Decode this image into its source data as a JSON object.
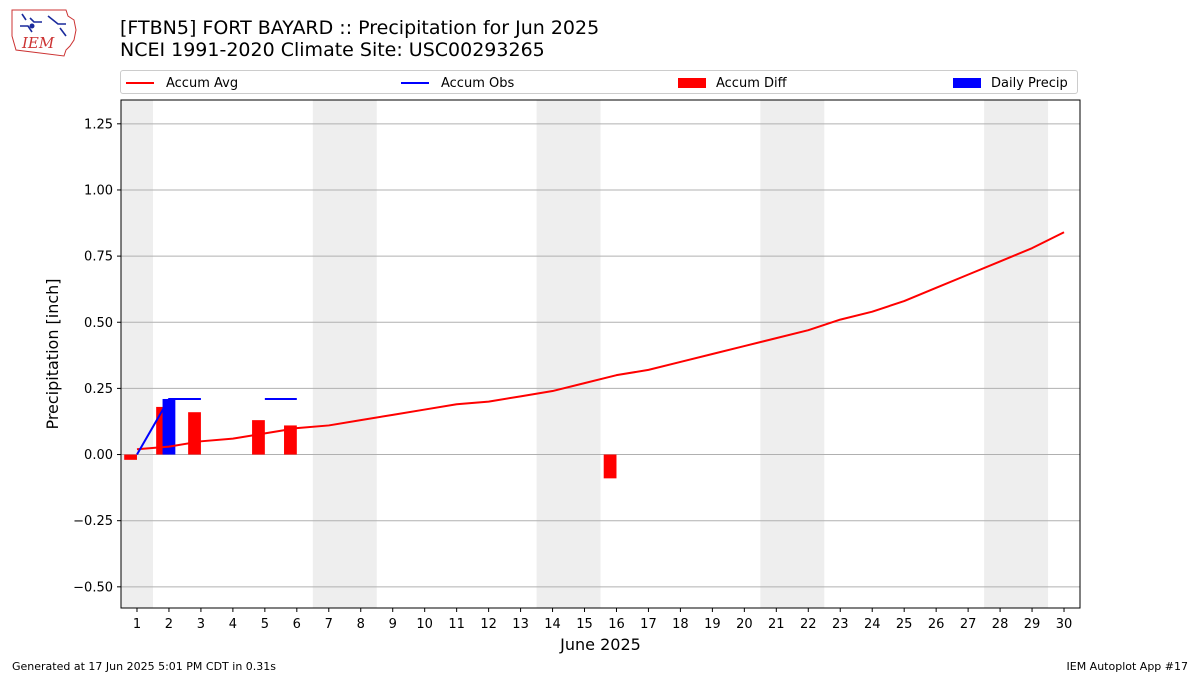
{
  "logo": {
    "text": "IEM"
  },
  "header": {
    "title_line1": "[FTBN5] FORT BAYARD :: Precipitation for Jun 2025",
    "title_line2": "NCEI 1991-2020 Climate Site: USC00293265"
  },
  "footer": {
    "left": "Generated at 17 Jun 2025 5:01 PM CDT in 0.31s",
    "right": "IEM Autoplot App #17"
  },
  "colors": {
    "accum_avg": "#ff0000",
    "accum_obs": "#0000ff",
    "accum_diff": "#ff0000",
    "daily_precip": "#0000ff",
    "weekend_band": "#eeeeee",
    "grid": "#b0b0b0"
  },
  "chart_data": {
    "type": "line",
    "xlabel": "June 2025",
    "ylabel": "Precipitation [inch]",
    "xlim": [
      0.5,
      30.5
    ],
    "ylim": [
      -0.58,
      1.34
    ],
    "grid": true,
    "legend_position": "top",
    "x_ticks": [
      1,
      2,
      3,
      4,
      5,
      6,
      7,
      8,
      9,
      10,
      11,
      12,
      13,
      14,
      15,
      16,
      17,
      18,
      19,
      20,
      21,
      22,
      23,
      24,
      25,
      26,
      27,
      28,
      29,
      30
    ],
    "y_ticks": [
      -0.5,
      -0.25,
      0.0,
      0.25,
      0.5,
      0.75,
      1.0,
      1.25
    ],
    "y_tick_labels": [
      "−0.50",
      "−0.25",
      "0.00",
      "0.25",
      "0.50",
      "0.75",
      "1.00",
      "1.25"
    ],
    "weekend_bands": [
      [
        0.5,
        1.5
      ],
      [
        6.5,
        8.5
      ],
      [
        13.5,
        15.5
      ],
      [
        20.5,
        22.5
      ],
      [
        27.5,
        29.5
      ]
    ],
    "legend": [
      "Accum Avg",
      "Accum Obs",
      "Accum Diff",
      "Daily Precip"
    ],
    "series": [
      {
        "name": "Accum Avg",
        "kind": "line",
        "x": [
          1,
          2,
          3,
          4,
          5,
          6,
          7,
          8,
          9,
          10,
          11,
          12,
          13,
          14,
          15,
          16,
          17,
          18,
          19,
          20,
          21,
          22,
          23,
          24,
          25,
          26,
          27,
          28,
          29,
          30
        ],
        "values": [
          0.02,
          0.03,
          0.05,
          0.06,
          0.08,
          0.1,
          0.11,
          0.13,
          0.15,
          0.17,
          0.19,
          0.2,
          0.22,
          0.24,
          0.27,
          0.3,
          0.32,
          0.35,
          0.38,
          0.41,
          0.44,
          0.47,
          0.51,
          0.54,
          0.58,
          0.63,
          0.68,
          0.73,
          0.78,
          0.84
        ]
      },
      {
        "name": "Accum Obs",
        "kind": "line",
        "segments": [
          {
            "x": [
              1,
              2,
              3
            ],
            "values": [
              0.0,
              0.21,
              0.21
            ]
          },
          {
            "x": [
              5,
              6
            ],
            "values": [
              0.21,
              0.21
            ]
          }
        ]
      },
      {
        "name": "Accum Diff",
        "kind": "bar",
        "x": [
          1,
          2,
          3,
          5,
          6,
          16
        ],
        "values": [
          -0.02,
          0.18,
          0.16,
          0.13,
          0.11,
          -0.09
        ]
      },
      {
        "name": "Daily Precip",
        "kind": "bar",
        "x": [
          2
        ],
        "values": [
          0.21
        ]
      }
    ]
  }
}
